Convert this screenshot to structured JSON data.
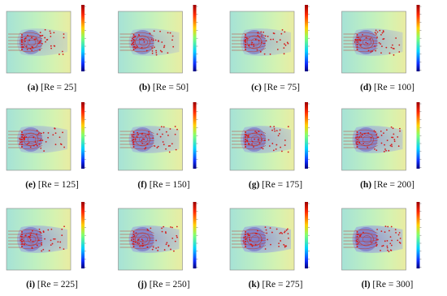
{
  "figure": {
    "panels": [
      {
        "label": "(a)",
        "caption": "[Re = 25]"
      },
      {
        "label": "(b)",
        "caption": "[Re = 50]"
      },
      {
        "label": "(c)",
        "caption": "[Re = 75]"
      },
      {
        "label": "(d)",
        "caption": "[Re = 100]"
      },
      {
        "label": "(e)",
        "caption": "[Re = 125]"
      },
      {
        "label": "(f)",
        "caption": "[Re = 150]"
      },
      {
        "label": "(g)",
        "caption": "[Re = 175]"
      },
      {
        "label": "(h)",
        "caption": "[Re = 200]"
      },
      {
        "label": "(i)",
        "caption": "[Re = 225]"
      },
      {
        "label": "(j)",
        "caption": "[Re = 250]"
      },
      {
        "label": "(k)",
        "caption": "[Re = 275]"
      },
      {
        "label": "(l)",
        "caption": "[Re = 300]"
      }
    ]
  }
}
